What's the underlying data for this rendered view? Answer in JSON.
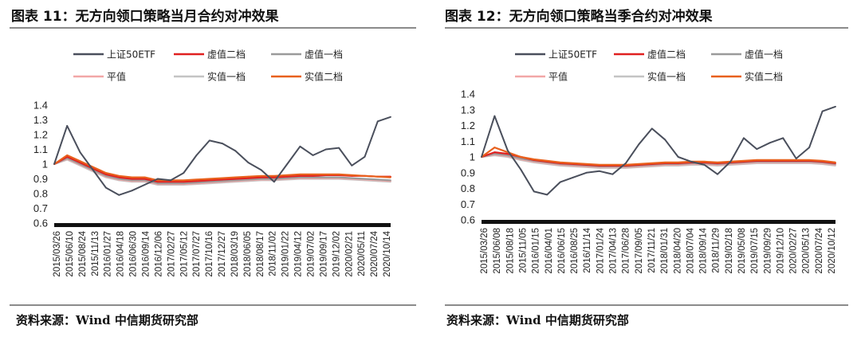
{
  "panels": [
    {
      "title": "图表 11：无方向领口策略当月合约对冲效果",
      "source": "资料来源：Wind 中信期货研究部"
    },
    {
      "title": "图表 12：无方向领口策略当季合约对冲效果",
      "source": "资料来源：Wind 中信期货研究部"
    }
  ],
  "chart_data": [
    {
      "type": "line",
      "title": "",
      "xlabel": "",
      "ylabel": "",
      "ylim": [
        0.6,
        1.4
      ],
      "yticks": [
        "0.6",
        "0.7",
        "0.8",
        "0.9",
        "1",
        "1.1",
        "1.2",
        "1.3",
        "1.4"
      ],
      "x_ticks": [
        "2015/03/26",
        "2015/06/10",
        "2015/08/24",
        "2015/11/13",
        "2016/01/27",
        "2016/04/18",
        "2016/06/30",
        "2016/09/14",
        "2016/12/06",
        "2017/02/27",
        "2017/05/12",
        "2017/07/27",
        "2017/10/16",
        "2017/12/27",
        "2018/03/19",
        "2018/06/05",
        "2018/08/17",
        "2018/11/02",
        "2019/01/22",
        "2019/04/12",
        "2019/07/02",
        "2019/09/17",
        "2019/12/02",
        "2020/02/21",
        "2020/05/11",
        "2020/07/24",
        "2020/10/14"
      ],
      "grid": false,
      "legend": "top",
      "series": [
        {
          "name": "上证50ETF",
          "color": "#4a4f5c",
          "values": [
            1.0,
            1.26,
            1.08,
            0.96,
            0.84,
            0.79,
            0.82,
            0.86,
            0.9,
            0.89,
            0.94,
            1.06,
            1.16,
            1.14,
            1.09,
            1.01,
            0.96,
            0.88,
            1.0,
            1.12,
            1.06,
            1.1,
            1.11,
            0.99,
            1.05,
            1.29,
            1.32
          ]
        },
        {
          "name": "虚值二档",
          "color": "#e02020",
          "values": [
            1.0,
            1.05,
            1.01,
            0.97,
            0.93,
            0.91,
            0.9,
            0.9,
            0.88,
            0.88,
            0.88,
            0.885,
            0.89,
            0.895,
            0.9,
            0.905,
            0.91,
            0.91,
            0.915,
            0.92,
            0.92,
            0.925,
            0.925,
            0.92,
            0.92,
            0.915,
            0.915
          ]
        },
        {
          "name": "虚值一档",
          "color": "#9a9a9a",
          "values": [
            1.0,
            1.04,
            1.0,
            0.96,
            0.92,
            0.9,
            0.89,
            0.89,
            0.87,
            0.87,
            0.87,
            0.875,
            0.88,
            0.885,
            0.89,
            0.895,
            0.9,
            0.9,
            0.905,
            0.91,
            0.91,
            0.91,
            0.91,
            0.905,
            0.9,
            0.895,
            0.89
          ]
        },
        {
          "name": "平值",
          "color": "#f2a7a7",
          "values": [
            1.0,
            1.035,
            0.995,
            0.955,
            0.915,
            0.895,
            0.885,
            0.885,
            0.865,
            0.865,
            0.865,
            0.87,
            0.875,
            0.88,
            0.885,
            0.89,
            0.895,
            0.895,
            0.9,
            0.905,
            0.905,
            0.905,
            0.905,
            0.9,
            0.895,
            0.89,
            0.885
          ]
        },
        {
          "name": "实值一档",
          "color": "#c4c4c4",
          "values": [
            1.0,
            1.03,
            0.99,
            0.95,
            0.91,
            0.89,
            0.88,
            0.88,
            0.86,
            0.86,
            0.86,
            0.865,
            0.87,
            0.875,
            0.88,
            0.885,
            0.89,
            0.89,
            0.895,
            0.9,
            0.9,
            0.9,
            0.9,
            0.895,
            0.89,
            0.885,
            0.88
          ]
        },
        {
          "name": "实值二档",
          "color": "#e8601c",
          "values": [
            1.0,
            1.06,
            1.02,
            0.98,
            0.94,
            0.92,
            0.91,
            0.91,
            0.89,
            0.89,
            0.89,
            0.895,
            0.9,
            0.905,
            0.91,
            0.915,
            0.92,
            0.92,
            0.925,
            0.93,
            0.93,
            0.93,
            0.93,
            0.925,
            0.92,
            0.915,
            0.91
          ]
        }
      ]
    },
    {
      "type": "line",
      "title": "",
      "xlabel": "",
      "ylabel": "",
      "ylim": [
        0.6,
        1.4
      ],
      "yticks": [
        "0.6",
        "0.7",
        "0.8",
        "0.9",
        "1",
        "1.1",
        "1.2",
        "1.3",
        "1.4"
      ],
      "x_ticks": [
        "2015/03/26",
        "2015/06/08",
        "2015/08/18",
        "2015/11/05",
        "2016/01/15",
        "2016/04/01",
        "2016/06/15",
        "2016/08/25",
        "2016/11/14",
        "2017/01/24",
        "2017/04/13",
        "2017/06/28",
        "2017/09/05",
        "2017/11/21",
        "2018/01/31",
        "2018/04/20",
        "2018/07/04",
        "2018/09/14",
        "2018/11/29",
        "2019/02/18",
        "2019/05/08",
        "2019/07/15",
        "2019/09/29",
        "2019/12/10",
        "2020/02/27",
        "2020/05/13",
        "2020/07/24",
        "2020/10/12"
      ],
      "grid": false,
      "legend": "top",
      "series": [
        {
          "name": "上证50ETF",
          "color": "#4a4f5c",
          "values": [
            1.0,
            1.26,
            1.04,
            0.92,
            0.78,
            0.76,
            0.84,
            0.87,
            0.9,
            0.91,
            0.89,
            0.96,
            1.08,
            1.18,
            1.11,
            1.0,
            0.97,
            0.95,
            0.89,
            0.97,
            1.12,
            1.05,
            1.09,
            1.12,
            0.99,
            1.06,
            1.29,
            1.32
          ]
        },
        {
          "name": "虚值二档",
          "color": "#e02020",
          "values": [
            1.0,
            1.03,
            1.02,
            1.0,
            0.98,
            0.97,
            0.96,
            0.955,
            0.95,
            0.945,
            0.945,
            0.945,
            0.95,
            0.955,
            0.96,
            0.96,
            0.965,
            0.965,
            0.96,
            0.965,
            0.97,
            0.975,
            0.975,
            0.975,
            0.975,
            0.975,
            0.97,
            0.96
          ]
        },
        {
          "name": "虚值一档",
          "color": "#9a9a9a",
          "values": [
            1.0,
            1.02,
            1.01,
            0.99,
            0.975,
            0.965,
            0.955,
            0.95,
            0.945,
            0.94,
            0.94,
            0.94,
            0.945,
            0.95,
            0.955,
            0.955,
            0.96,
            0.96,
            0.955,
            0.96,
            0.965,
            0.97,
            0.97,
            0.97,
            0.97,
            0.97,
            0.965,
            0.955
          ]
        },
        {
          "name": "平值",
          "color": "#f2a7a7",
          "values": [
            1.0,
            1.015,
            1.005,
            0.985,
            0.97,
            0.96,
            0.95,
            0.945,
            0.94,
            0.935,
            0.935,
            0.935,
            0.94,
            0.945,
            0.95,
            0.95,
            0.955,
            0.955,
            0.95,
            0.955,
            0.96,
            0.965,
            0.965,
            0.965,
            0.965,
            0.965,
            0.96,
            0.95
          ]
        },
        {
          "name": "实值一档",
          "color": "#c4c4c4",
          "values": [
            1.0,
            1.01,
            1.0,
            0.98,
            0.965,
            0.955,
            0.945,
            0.94,
            0.935,
            0.93,
            0.93,
            0.93,
            0.935,
            0.94,
            0.945,
            0.945,
            0.95,
            0.95,
            0.945,
            0.95,
            0.955,
            0.96,
            0.96,
            0.96,
            0.96,
            0.96,
            0.955,
            0.945
          ]
        },
        {
          "name": "实值二档",
          "color": "#e8601c",
          "values": [
            1.0,
            1.06,
            1.03,
            1.0,
            0.985,
            0.975,
            0.965,
            0.96,
            0.955,
            0.95,
            0.95,
            0.95,
            0.955,
            0.96,
            0.965,
            0.965,
            0.97,
            0.97,
            0.965,
            0.97,
            0.975,
            0.98,
            0.98,
            0.98,
            0.98,
            0.98,
            0.975,
            0.965
          ]
        }
      ]
    }
  ]
}
